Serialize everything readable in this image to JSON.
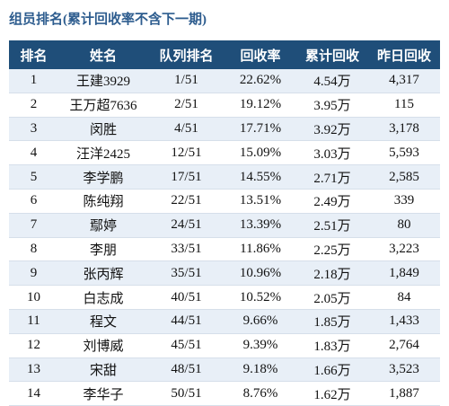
{
  "title": "组员排名(累计回收率不含下一期)",
  "table": {
    "header": [
      "排名",
      "姓名",
      "队列排名",
      "回收率",
      "累计回收",
      "昨日回收"
    ],
    "rows": [
      [
        "1",
        "王建3929",
        "1/51",
        "22.62%",
        "4.54万",
        "4,317"
      ],
      [
        "2",
        "王万超7636",
        "2/51",
        "19.12%",
        "3.95万",
        "115"
      ],
      [
        "3",
        "闵胜",
        "4/51",
        "17.71%",
        "3.92万",
        "3,178"
      ],
      [
        "4",
        "汪洋2425",
        "12/51",
        "15.09%",
        "3.03万",
        "5,593"
      ],
      [
        "5",
        "李学鹏",
        "17/51",
        "14.55%",
        "2.71万",
        "2,585"
      ],
      [
        "6",
        "陈纯翔",
        "22/51",
        "13.51%",
        "2.49万",
        "339"
      ],
      [
        "7",
        "鄢婷",
        "24/51",
        "13.39%",
        "2.51万",
        "80"
      ],
      [
        "8",
        "李朋",
        "33/51",
        "11.86%",
        "2.25万",
        "3,223"
      ],
      [
        "9",
        "张丙辉",
        "35/51",
        "10.96%",
        "2.18万",
        "1,849"
      ],
      [
        "10",
        "白志成",
        "40/51",
        "10.52%",
        "2.05万",
        "84"
      ],
      [
        "11",
        "程文",
        "44/51",
        "9.66%",
        "1.85万",
        "1,433"
      ],
      [
        "12",
        "刘博威",
        "45/51",
        "9.39%",
        "1.83万",
        "2,764"
      ],
      [
        "13",
        "宋甜",
        "48/51",
        "9.18%",
        "1.66万",
        "3,523"
      ],
      [
        "14",
        "李华子",
        "50/51",
        "8.76%",
        "1.62万",
        "1,887"
      ]
    ]
  }
}
